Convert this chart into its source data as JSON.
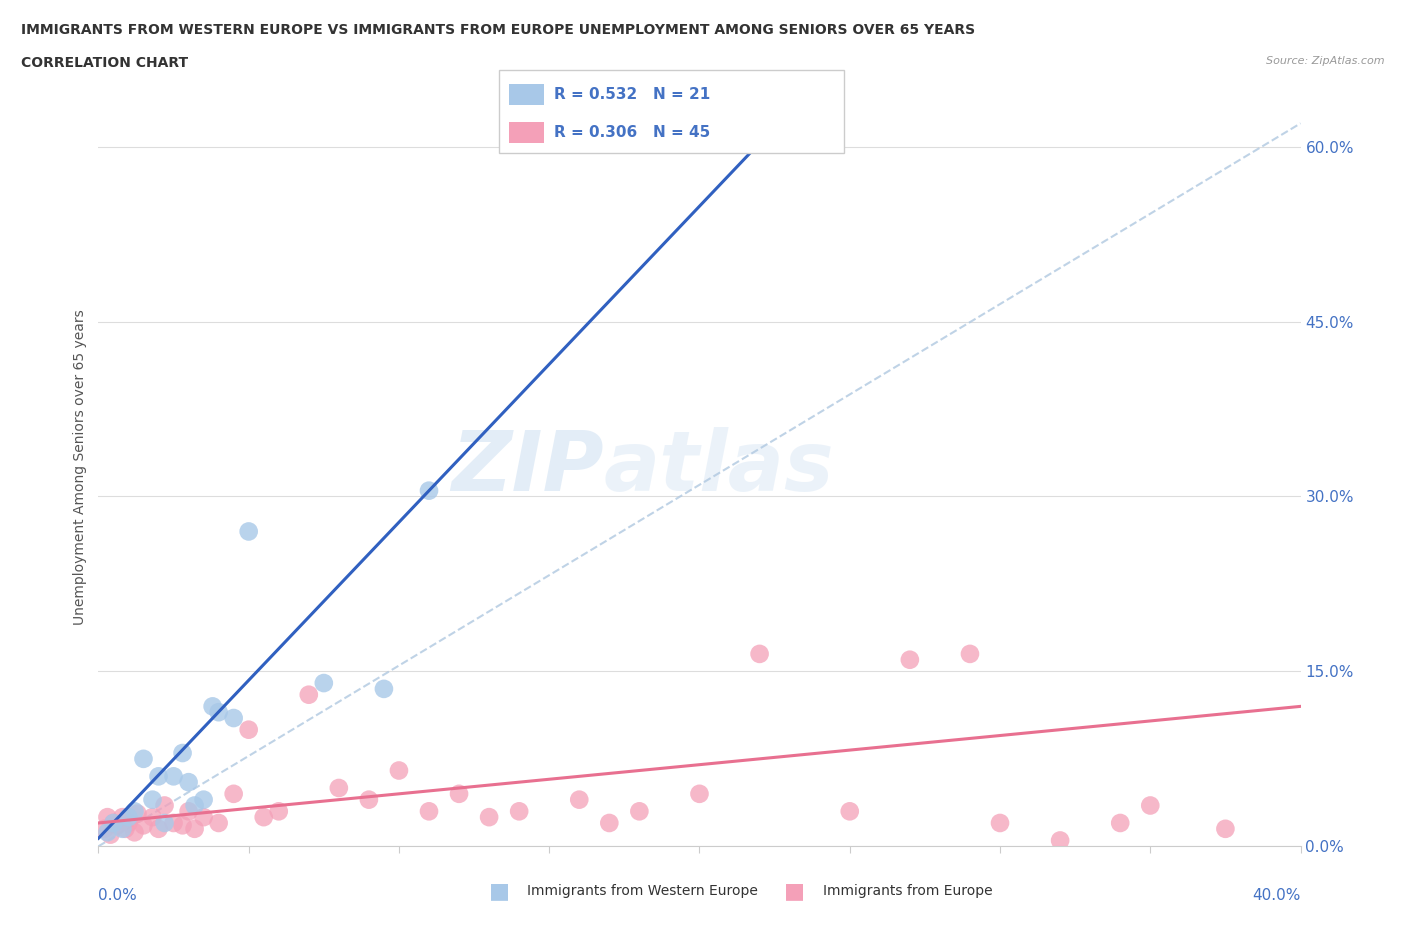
{
  "title_line1": "IMMIGRANTS FROM WESTERN EUROPE VS IMMIGRANTS FROM EUROPE UNEMPLOYMENT AMONG SENIORS OVER 65 YEARS",
  "title_line2": "CORRELATION CHART",
  "source": "Source: ZipAtlas.com",
  "ylabel": "Unemployment Among Seniors over 65 years",
  "ytick_vals": [
    0.0,
    15.0,
    30.0,
    45.0,
    60.0
  ],
  "ytick_labels": [
    "0.0%",
    "15.0%",
    "30.0%",
    "45.0%",
    "60.0%"
  ],
  "legend_blue_r": "0.532",
  "legend_blue_n": "21",
  "legend_pink_r": "0.306",
  "legend_pink_n": "45",
  "legend_blue_label": "Immigrants from Western Europe",
  "legend_pink_label": "Immigrants from Europe",
  "watermark_zip": "ZIP",
  "watermark_atlas": "atlas",
  "blue_color": "#A8C8E8",
  "pink_color": "#F4A0B8",
  "blue_line_color": "#3060C0",
  "pink_line_color": "#E87090",
  "dashed_line_color": "#B0C8E0",
  "blue_scatter": [
    [
      0.3,
      1.2
    ],
    [
      0.5,
      2.0
    ],
    [
      0.8,
      1.5
    ],
    [
      1.0,
      2.5
    ],
    [
      1.2,
      3.0
    ],
    [
      1.5,
      7.5
    ],
    [
      1.8,
      4.0
    ],
    [
      2.0,
      6.0
    ],
    [
      2.2,
      2.0
    ],
    [
      2.5,
      6.0
    ],
    [
      2.8,
      8.0
    ],
    [
      3.0,
      5.5
    ],
    [
      3.2,
      3.5
    ],
    [
      3.5,
      4.0
    ],
    [
      3.8,
      12.0
    ],
    [
      4.0,
      11.5
    ],
    [
      4.5,
      11.0
    ],
    [
      5.0,
      27.0
    ],
    [
      7.5,
      14.0
    ],
    [
      9.5,
      13.5
    ],
    [
      11.0,
      30.5
    ]
  ],
  "pink_scatter": [
    [
      0.2,
      1.5
    ],
    [
      0.3,
      2.5
    ],
    [
      0.4,
      1.0
    ],
    [
      0.5,
      2.0
    ],
    [
      0.6,
      1.8
    ],
    [
      0.8,
      2.5
    ],
    [
      0.9,
      1.5
    ],
    [
      1.0,
      2.0
    ],
    [
      1.2,
      1.2
    ],
    [
      1.3,
      2.8
    ],
    [
      1.5,
      1.8
    ],
    [
      1.8,
      2.5
    ],
    [
      2.0,
      1.5
    ],
    [
      2.2,
      3.5
    ],
    [
      2.5,
      2.0
    ],
    [
      2.8,
      1.8
    ],
    [
      3.0,
      3.0
    ],
    [
      3.2,
      1.5
    ],
    [
      3.5,
      2.5
    ],
    [
      4.0,
      2.0
    ],
    [
      4.5,
      4.5
    ],
    [
      5.0,
      10.0
    ],
    [
      5.5,
      2.5
    ],
    [
      6.0,
      3.0
    ],
    [
      7.0,
      13.0
    ],
    [
      8.0,
      5.0
    ],
    [
      9.0,
      4.0
    ],
    [
      10.0,
      6.5
    ],
    [
      11.0,
      3.0
    ],
    [
      12.0,
      4.5
    ],
    [
      13.0,
      2.5
    ],
    [
      14.0,
      3.0
    ],
    [
      16.0,
      4.0
    ],
    [
      17.0,
      2.0
    ],
    [
      18.0,
      3.0
    ],
    [
      20.0,
      4.5
    ],
    [
      22.0,
      16.5
    ],
    [
      25.0,
      3.0
    ],
    [
      27.0,
      16.0
    ],
    [
      29.0,
      16.5
    ],
    [
      30.0,
      2.0
    ],
    [
      32.0,
      0.5
    ],
    [
      34.0,
      2.0
    ],
    [
      35.0,
      3.5
    ],
    [
      37.5,
      1.5
    ]
  ],
  "xlim": [
    0,
    40
  ],
  "ylim": [
    -2,
    65
  ],
  "plot_ylim": [
    0,
    65
  ]
}
